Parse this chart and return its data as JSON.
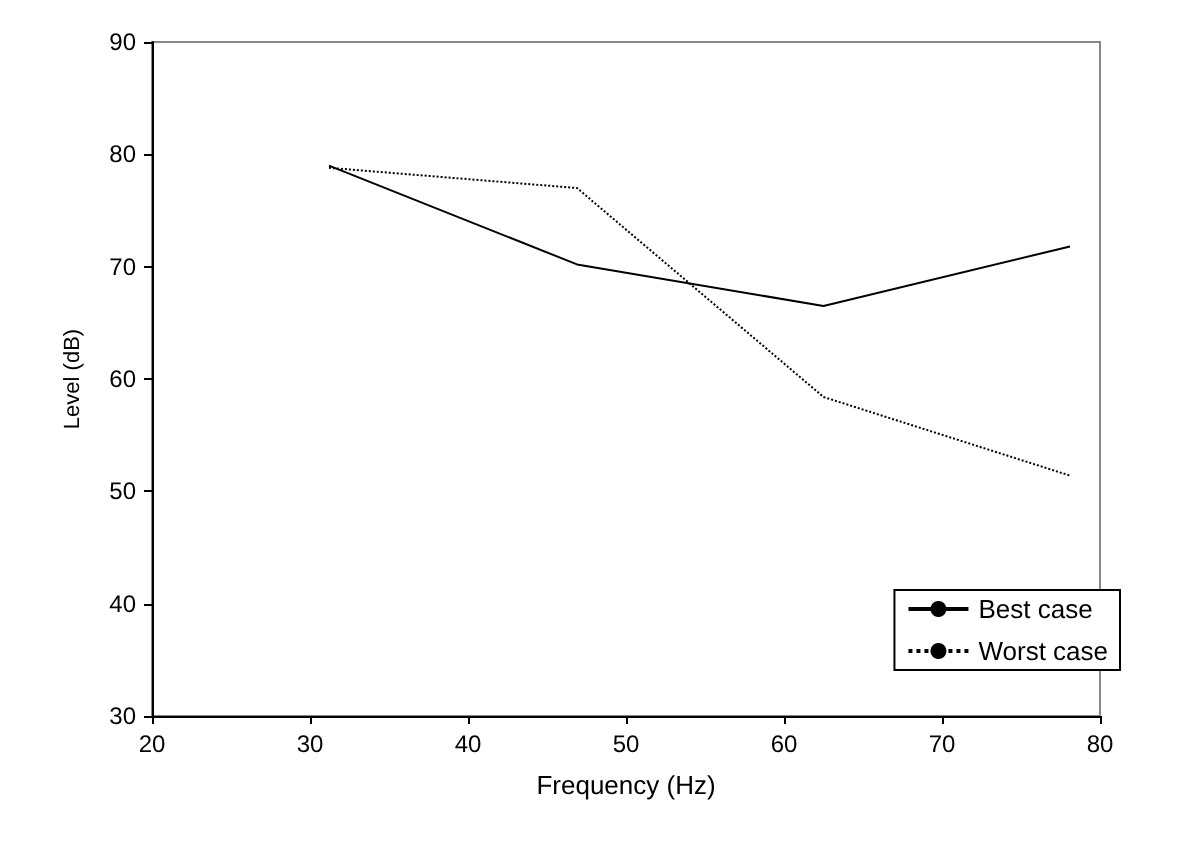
{
  "chart_data": {
    "type": "line",
    "xlabel": "Frequency (Hz)",
    "ylabel": "Level (dB)",
    "x": [
      31.2,
      46.9,
      62.5,
      78.1
    ],
    "series": [
      {
        "name": "Best case",
        "color": "#000000",
        "line_style": "solid",
        "values": [
          79.0,
          70.2,
          66.5,
          71.8
        ]
      },
      {
        "name": "Worst case",
        "color": "#000000",
        "line_style": "dotted",
        "values": [
          78.8,
          77.0,
          58.4,
          51.4
        ]
      }
    ],
    "xlim": [
      20,
      80
    ],
    "xticks": [
      20,
      30,
      40,
      50,
      60,
      70,
      80
    ],
    "ylim": [
      30,
      90
    ],
    "yticks": [
      30,
      40,
      50,
      60,
      70,
      80,
      90
    ],
    "grid": false,
    "legend": "bottom right",
    "marker": "none"
  }
}
